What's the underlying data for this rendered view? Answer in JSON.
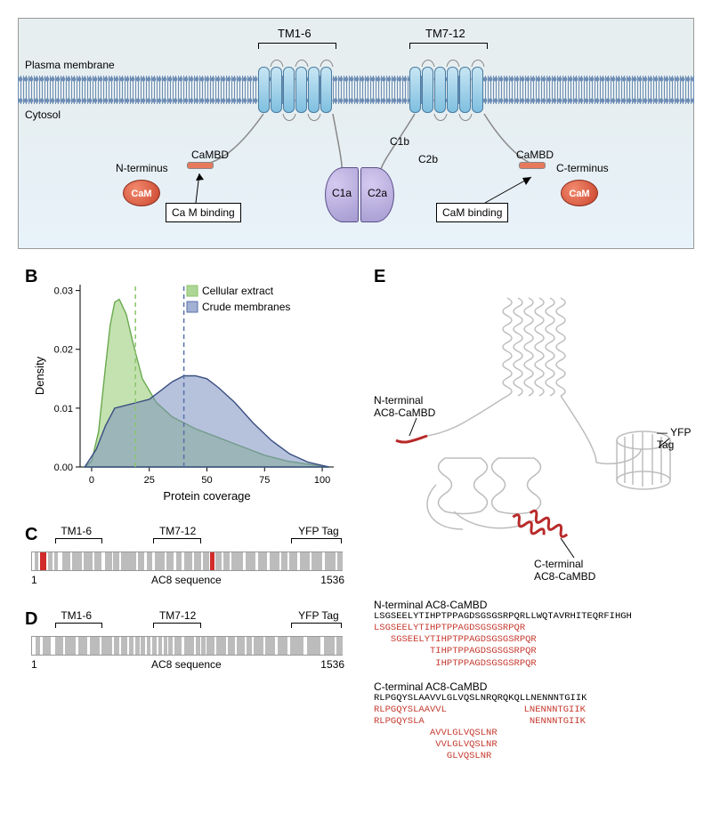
{
  "labels": {
    "A": "A",
    "B": "B",
    "C": "C",
    "D": "D",
    "E": "E"
  },
  "panelA": {
    "plasma_membrane": "Plasma membrane",
    "cytosol": "Cytosol",
    "tm16": "TM1-6",
    "tm712": "TM7-12",
    "nterm": "N-terminus",
    "cterm": "C-terminus",
    "cam": "CaM",
    "cambd": "CaMBD",
    "c1a": "C1a",
    "c1b": "C1b",
    "c2a": "C2a",
    "c2b": "C2b",
    "cam_binding": "Ca M binding",
    "cam_binding2": "CaM binding"
  },
  "panelB": {
    "type": "density",
    "xlabel": "Protein coverage",
    "ylabel": "Density",
    "legend": [
      {
        "label": "Cellular extract",
        "color": "#8bc46a",
        "fill": "#8bc46a"
      },
      {
        "label": "Crude membranes",
        "color": "#5970a9",
        "fill": "#7a8fc0"
      }
    ],
    "x_ticks": [
      0,
      25,
      50,
      75,
      100
    ],
    "y_ticks": [
      0.0,
      0.01,
      0.02,
      0.03
    ],
    "xlim": [
      -5,
      105
    ],
    "ylim": [
      0,
      0.031
    ],
    "mean_lines": [
      {
        "x": 19,
        "color": "#8bc46a"
      },
      {
        "x": 40,
        "color": "#5970a9"
      }
    ],
    "series": [
      {
        "name": "Cellular extract",
        "color": "#6aa94f",
        "fill": "#9bcf7c",
        "opacity": 0.6,
        "points": [
          [
            -3,
            0.0
          ],
          [
            0,
            0.001
          ],
          [
            3,
            0.006
          ],
          [
            6,
            0.017
          ],
          [
            8,
            0.024
          ],
          [
            10,
            0.028
          ],
          [
            12,
            0.0285
          ],
          [
            15,
            0.026
          ],
          [
            18,
            0.021
          ],
          [
            22,
            0.015
          ],
          [
            28,
            0.011
          ],
          [
            35,
            0.0085
          ],
          [
            45,
            0.0065
          ],
          [
            55,
            0.005
          ],
          [
            65,
            0.0035
          ],
          [
            75,
            0.002
          ],
          [
            85,
            0.001
          ],
          [
            95,
            0.0004
          ],
          [
            103,
            0.0
          ]
        ]
      },
      {
        "name": "Crude membranes",
        "color": "#3a4e80",
        "fill": "#7a8fc0",
        "opacity": 0.55,
        "points": [
          [
            -3,
            0.0
          ],
          [
            2,
            0.003
          ],
          [
            6,
            0.007
          ],
          [
            10,
            0.01
          ],
          [
            15,
            0.0105
          ],
          [
            20,
            0.011
          ],
          [
            25,
            0.0115
          ],
          [
            30,
            0.013
          ],
          [
            35,
            0.0145
          ],
          [
            40,
            0.0155
          ],
          [
            45,
            0.0155
          ],
          [
            50,
            0.015
          ],
          [
            55,
            0.0135
          ],
          [
            62,
            0.011
          ],
          [
            70,
            0.0075
          ],
          [
            78,
            0.0045
          ],
          [
            86,
            0.0022
          ],
          [
            94,
            0.0008
          ],
          [
            103,
            0.0
          ]
        ]
      }
    ],
    "axis_color": "#000",
    "background_color": "#ffffff",
    "label_fontsize": 13,
    "tick_fontsize": 11
  },
  "seq": {
    "start": 1,
    "end": 1536,
    "xlabel": "AC8 sequence",
    "labels": {
      "tm16": "TM1-6",
      "tm712": "TM7-12",
      "yfp": "YFP Tag"
    },
    "bracket_ranges": {
      "tm16": [
        120,
        350
      ],
      "tm712": [
        600,
        840
      ],
      "yfp": [
        1280,
        1530
      ]
    }
  },
  "panelC": {
    "red": [
      [
        40,
        72
      ]
    ],
    "gray": [
      [
        15,
        30
      ],
      [
        80,
        100
      ],
      [
        110,
        130
      ],
      [
        150,
        190
      ],
      [
        200,
        245
      ],
      [
        255,
        300
      ],
      [
        310,
        345
      ],
      [
        362,
        395
      ],
      [
        402,
        430
      ],
      [
        440,
        515
      ],
      [
        525,
        555
      ],
      [
        565,
        595
      ],
      [
        605,
        655
      ],
      [
        665,
        700
      ],
      [
        712,
        740
      ],
      [
        750,
        790
      ],
      [
        800,
        835
      ],
      [
        845,
        872
      ],
      [
        905,
        935
      ],
      [
        942,
        975
      ],
      [
        985,
        1040
      ],
      [
        1055,
        1100
      ],
      [
        1115,
        1160
      ],
      [
        1172,
        1220
      ],
      [
        1230,
        1260
      ],
      [
        1270,
        1310
      ],
      [
        1320,
        1370
      ],
      [
        1380,
        1430
      ],
      [
        1445,
        1495
      ],
      [
        1505,
        1530
      ]
    ],
    "red2": [
      [
        880,
        900
      ]
    ]
  },
  "panelD": {
    "gray": [
      [
        18,
        40
      ],
      [
        55,
        92
      ],
      [
        115,
        155
      ],
      [
        165,
        215
      ],
      [
        230,
        275
      ],
      [
        285,
        335
      ],
      [
        345,
        395
      ],
      [
        405,
        432
      ],
      [
        440,
        470
      ],
      [
        478,
        500
      ],
      [
        508,
        530
      ],
      [
        538,
        558
      ],
      [
        566,
        586
      ],
      [
        594,
        614
      ],
      [
        622,
        640
      ],
      [
        648,
        666
      ],
      [
        674,
        695
      ],
      [
        703,
        740
      ],
      [
        750,
        800
      ],
      [
        810,
        828
      ],
      [
        836,
        855
      ],
      [
        862,
        900
      ],
      [
        910,
        955
      ],
      [
        965,
        1000
      ],
      [
        1010,
        1050
      ],
      [
        1060,
        1085
      ],
      [
        1095,
        1140
      ],
      [
        1150,
        1200
      ],
      [
        1210,
        1260
      ],
      [
        1275,
        1340
      ],
      [
        1355,
        1420
      ],
      [
        1440,
        1490
      ],
      [
        1500,
        1530
      ]
    ]
  },
  "panelE": {
    "ann": {
      "ncambd": "N-terminal\nAC8-CaMBD",
      "ccambd": "C-terminal\nAC8-CaMBD",
      "yfp": "YFP Tag"
    },
    "nseq_title": "N-terminal AC8-CaMBD",
    "nseq_black": "LSGSEELYTIHPTPPAGDSGSGSRPQRLLWQTAVRHITEQRFIHGH",
    "nseq_red": [
      "LSGSEELYTIHPTPPAGDSGSGSRPQR",
      "   SGSEELYTIHPTPPAGDSGSGSRPQR",
      "          TIHPTPPAGDSGSGSRPQR",
      "           IHPTPPAGDSGSGSRPQR"
    ],
    "cseq_title": "C-terminal AC8-CaMBD",
    "cseq_black": "RLPGQYSLAAVVLGLVQSLNRQRQKQLLNENNNTGIIK",
    "cseq_red_left": [
      "RLPGQYSLAAVVL",
      "RLPGQYSLA",
      "          AVVLGLVQSLNR",
      "           VVLGLVQSLNR",
      "             GLVQSLNR"
    ],
    "cseq_red_right": [
      "LNENNNTGIIK",
      " NENNNTGIIK"
    ]
  },
  "colors": {
    "red": "#c5392e",
    "gray": "#bcbcbc",
    "struct_gray": "#bdbdbd",
    "struct_red": "#b92a2a"
  }
}
